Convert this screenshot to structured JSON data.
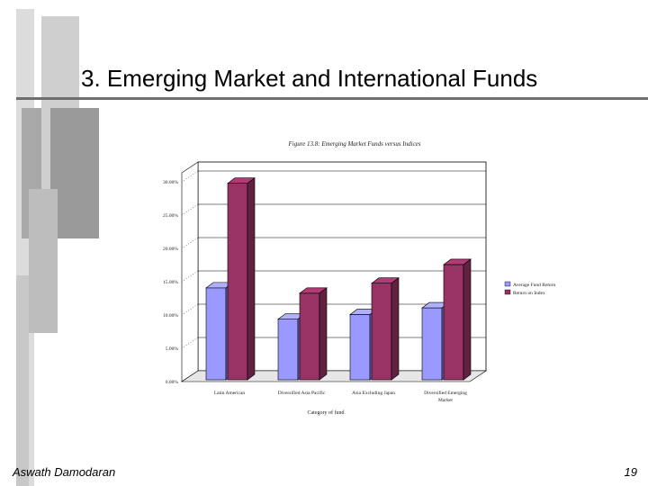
{
  "slide": {
    "title": "3. Emerging Market and International Funds",
    "author": "Aswath Damodaran",
    "page_number": "19"
  },
  "colors": {
    "bar_series_1": "#9999ff",
    "bar_series_2": "#993366",
    "rule": "#6e6e6e",
    "deco_gray": "#b8b8b8"
  },
  "chart_data": {
    "type": "bar",
    "title": "Figure 13.8: Emerging Market Funds versus Indices",
    "xlabel": "Category of fund",
    "ylabel": "",
    "categories": [
      "Latin American",
      "Diversified Asia Pacific",
      "Asia Excluding Japan",
      "Diversified Emerging Market"
    ],
    "series": [
      {
        "name": "Average Fund Return",
        "values": [
          13.8,
          9.1,
          9.8,
          10.8
        ]
      },
      {
        "name": "Return on Index",
        "values": [
          29.5,
          13.0,
          14.5,
          17.3
        ]
      }
    ],
    "yticks": [
      "0.00%",
      "5.00%",
      "10.00%",
      "15.00%",
      "20.00%",
      "25.00%",
      "30.00%"
    ],
    "ylim": [
      0,
      30
    ],
    "legend_position": "right",
    "three_d": true
  }
}
